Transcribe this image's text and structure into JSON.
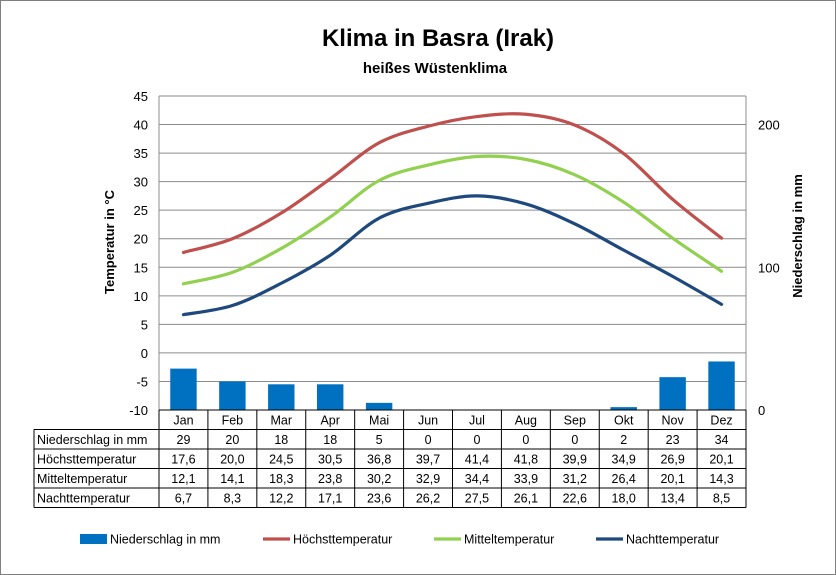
{
  "chart_data": {
    "type": "line",
    "title": "Klima in Basra (Irak)",
    "subtitle": "heißes Wüstenklima",
    "ylabel": "Temperatur in °C",
    "y2label": "Niederschlag in mm",
    "ylim": [
      -10,
      45
    ],
    "y_ticks": [
      "45",
      "40",
      "35",
      "30",
      "25",
      "20",
      "15",
      "10",
      "5",
      "0",
      "-5",
      "-10"
    ],
    "y2lim": [
      0,
      220
    ],
    "y2_ticks": [
      "200",
      "100",
      "0"
    ],
    "grid": true,
    "legend": "bottom",
    "categories": [
      "Jan",
      "Feb",
      "Mar",
      "Apr",
      "Mai",
      "Jun",
      "Jul",
      "Aug",
      "Sep",
      "Okt",
      "Nov",
      "Dez"
    ],
    "series": [
      {
        "name": "Niederschlag in mm",
        "type": "bar",
        "axis": "y2",
        "color": "#0070c0",
        "values": [
          29,
          20,
          18,
          18,
          5,
          0,
          0,
          0,
          0,
          2,
          23,
          34
        ],
        "labels": [
          "29",
          "20",
          "18",
          "18",
          "5",
          "0",
          "0",
          "0",
          "0",
          "2",
          "23",
          "34"
        ]
      },
      {
        "name": "Höchsttemperatur",
        "type": "line",
        "axis": "y",
        "color": "#c0504d",
        "values": [
          17.6,
          20.0,
          24.5,
          30.5,
          36.8,
          39.7,
          41.4,
          41.8,
          39.9,
          34.9,
          26.9,
          20.1
        ],
        "labels": [
          "17,6",
          "20,0",
          "24,5",
          "30,5",
          "36,8",
          "39,7",
          "41,4",
          "41,8",
          "39,9",
          "34,9",
          "26,9",
          "20,1"
        ]
      },
      {
        "name": "Mitteltemperatur",
        "type": "line",
        "axis": "y",
        "color": "#92d050",
        "values": [
          12.1,
          14.1,
          18.3,
          23.8,
          30.2,
          32.9,
          34.4,
          33.9,
          31.2,
          26.4,
          20.1,
          14.3
        ],
        "labels": [
          "12,1",
          "14,1",
          "18,3",
          "23,8",
          "30,2",
          "32,9",
          "34,4",
          "33,9",
          "31,2",
          "26,4",
          "20,1",
          "14,3"
        ]
      },
      {
        "name": "Nachttemperatur",
        "type": "line",
        "axis": "y",
        "color": "#1f497d",
        "values": [
          6.7,
          8.3,
          12.2,
          17.1,
          23.6,
          26.2,
          27.5,
          26.1,
          22.6,
          18.0,
          13.4,
          8.5
        ],
        "labels": [
          "6,7",
          "8,3",
          "12,2",
          "17,1",
          "23,6",
          "26,2",
          "27,5",
          "26,1",
          "22,6",
          "18,0",
          "13,4",
          "8,5"
        ]
      }
    ]
  }
}
